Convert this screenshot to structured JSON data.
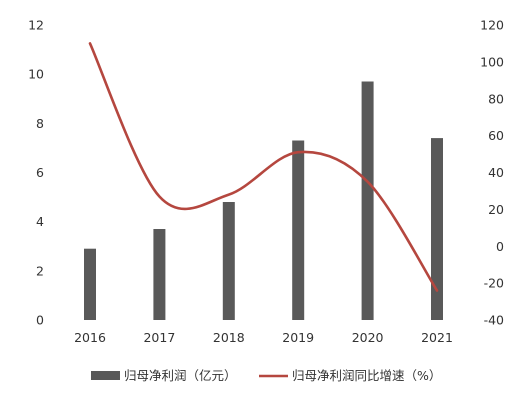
{
  "chart_data": {
    "type": "bar",
    "categories": [
      "2016",
      "2017",
      "2018",
      "2019",
      "2020",
      "2021"
    ],
    "series": [
      {
        "name": "归母净利润（亿元）",
        "type": "bar",
        "axis": "left",
        "color": "#595959",
        "values": [
          2.9,
          3.7,
          4.8,
          7.3,
          9.7,
          7.4
        ]
      },
      {
        "name": "归母净利润同比增速（%）",
        "type": "line",
        "axis": "right",
        "color": "#b5473f",
        "smooth": true,
        "values": [
          110,
          27,
          28,
          51,
          35,
          -24
        ]
      }
    ],
    "y_left": {
      "min": 0,
      "max": 12,
      "ticks": [
        "0",
        "2",
        "4",
        "6",
        "8",
        "10",
        "12"
      ]
    },
    "y_right": {
      "min": -40,
      "max": 120,
      "ticks": [
        "-40",
        "-20",
        "0",
        "20",
        "40",
        "60",
        "80",
        "100",
        "120"
      ]
    },
    "grid": false,
    "legend_position": "bottom"
  }
}
